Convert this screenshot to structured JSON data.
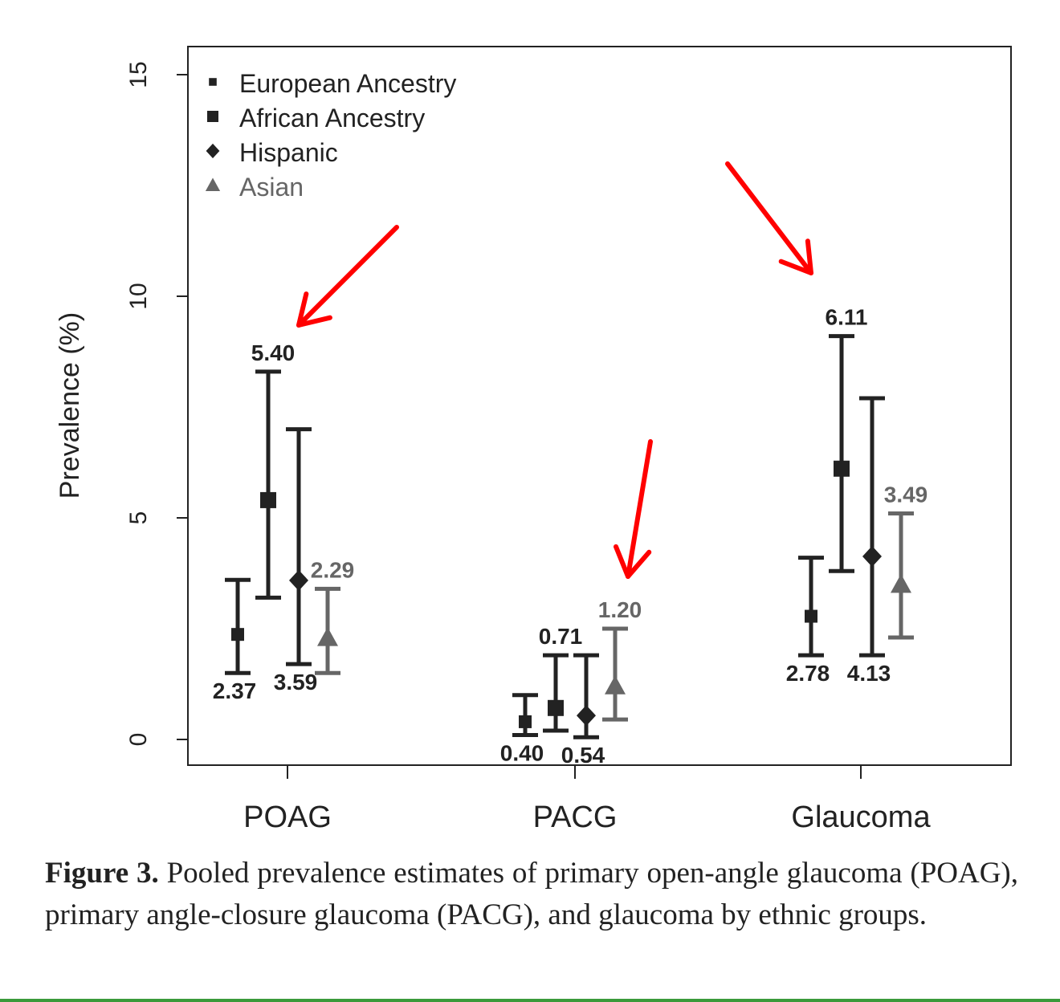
{
  "chart_data": {
    "type": "scatter",
    "ylabel": "Prevalence (%)",
    "ylim": [
      0,
      15
    ],
    "yticks": [
      "0",
      "5",
      "10",
      "15"
    ],
    "categories": [
      "POAG",
      "PACG",
      "Glaucoma"
    ],
    "legend_position": "top-left",
    "series": [
      {
        "name": "European Ancestry",
        "marker": "square-small",
        "color": "#222222",
        "points": [
          {
            "x": "POAG",
            "y": 2.37,
            "lo": 1.5,
            "hi": 3.6,
            "label": "2.37",
            "label_pos": "below"
          },
          {
            "x": "PACG",
            "y": 0.4,
            "lo": 0.1,
            "hi": 1.0,
            "label": "0.40",
            "label_pos": "below"
          },
          {
            "x": "Glaucoma",
            "y": 2.78,
            "lo": 1.9,
            "hi": 4.1,
            "label": "2.78",
            "label_pos": "below"
          }
        ]
      },
      {
        "name": "African Ancestry",
        "marker": "square",
        "color": "#222222",
        "points": [
          {
            "x": "POAG",
            "y": 5.4,
            "lo": 3.2,
            "hi": 8.3,
            "label": "5.40",
            "label_pos": "above"
          },
          {
            "x": "PACG",
            "y": 0.71,
            "lo": 0.2,
            "hi": 1.9,
            "label": "0.71",
            "label_pos": "above"
          },
          {
            "x": "Glaucoma",
            "y": 6.11,
            "lo": 3.8,
            "hi": 9.1,
            "label": "6.11",
            "label_pos": "above"
          }
        ]
      },
      {
        "name": "Hispanic",
        "marker": "diamond",
        "color": "#222222",
        "points": [
          {
            "x": "POAG",
            "y": 3.59,
            "lo": 1.7,
            "hi": 7.0,
            "label": "3.59",
            "label_pos": "below"
          },
          {
            "x": "PACG",
            "y": 0.54,
            "lo": 0.05,
            "hi": 1.9,
            "label": "0.54",
            "label_pos": "below"
          },
          {
            "x": "Glaucoma",
            "y": 4.13,
            "lo": 1.9,
            "hi": 7.7,
            "label": "4.13",
            "label_pos": "below"
          }
        ]
      },
      {
        "name": "Asian",
        "marker": "triangle",
        "color": "#666666",
        "points": [
          {
            "x": "POAG",
            "y": 2.29,
            "lo": 1.5,
            "hi": 3.4,
            "label": "2.29",
            "label_pos": "above"
          },
          {
            "x": "PACG",
            "y": 1.2,
            "lo": 0.45,
            "hi": 2.5,
            "label": "1.20",
            "label_pos": "above"
          },
          {
            "x": "Glaucoma",
            "y": 3.49,
            "lo": 2.3,
            "hi": 5.1,
            "label": "3.49",
            "label_pos": "above"
          }
        ]
      }
    ],
    "annotations": [
      {
        "type": "arrow",
        "color": "#ff0000",
        "points_to": "POAG African Ancestry 5.40"
      },
      {
        "type": "arrow",
        "color": "#ff0000",
        "points_to": "PACG Asian 1.20"
      },
      {
        "type": "arrow",
        "color": "#ff0000",
        "points_to": "Glaucoma African Ancestry 6.11"
      }
    ]
  },
  "caption": {
    "lead": "Figure 3.",
    "text": " Pooled prevalence estimates of primary open-angle glaucoma (POAG), primary angle-closure glaucoma (PACG), and glaucoma by ethnic groups."
  }
}
